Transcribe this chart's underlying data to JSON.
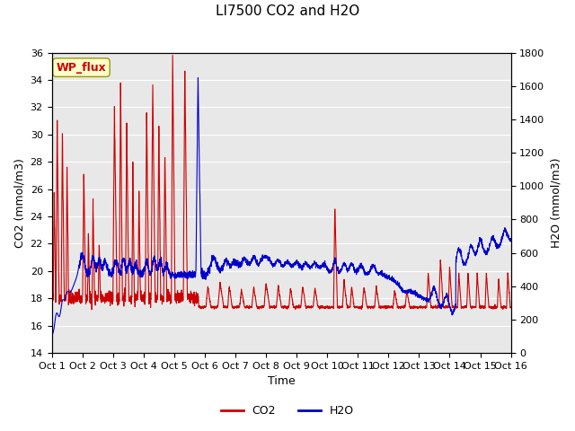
{
  "title": "LI7500 CO2 and H2O",
  "xlabel": "Time",
  "ylabel_left": "CO2 (mmol/m3)",
  "ylabel_right": "H2O (mmol/m3)",
  "annotation": "WP_flux",
  "xlim": [
    0,
    15
  ],
  "ylim_left": [
    14,
    36
  ],
  "ylim_right": [
    0,
    1800
  ],
  "yticks_left": [
    14,
    16,
    18,
    20,
    22,
    24,
    26,
    28,
    30,
    32,
    34,
    36
  ],
  "yticks_right": [
    0,
    200,
    400,
    600,
    800,
    1000,
    1200,
    1400,
    1600,
    1800
  ],
  "xtick_positions": [
    0,
    1,
    2,
    3,
    4,
    5,
    6,
    7,
    8,
    9,
    10,
    11,
    12,
    13,
    14,
    15
  ],
  "xtick_labels": [
    "Oct 1",
    "Oct 2",
    "Oct 3",
    "Oct 4",
    "Oct 5",
    "Oct 6",
    "Oct 7",
    "Oct 8",
    "Oct 9",
    "Oct 10",
    "Oct 11",
    "Oct 12",
    "Oct 13",
    "Oct 14",
    "Oct 15",
    "Oct 16"
  ],
  "co2_color": "#cc0000",
  "h2o_color": "#0000cc",
  "bg_color": "#ffffff",
  "plot_bg_color": "#e8e8e8",
  "grid_color": "#ffffff",
  "annotation_bg": "#ffffcc",
  "annotation_edge": "#999900",
  "annotation_text_color": "#cc0000",
  "title_fontsize": 11,
  "label_fontsize": 9,
  "tick_fontsize": 8,
  "legend_fontsize": 9,
  "line_width": 0.8
}
